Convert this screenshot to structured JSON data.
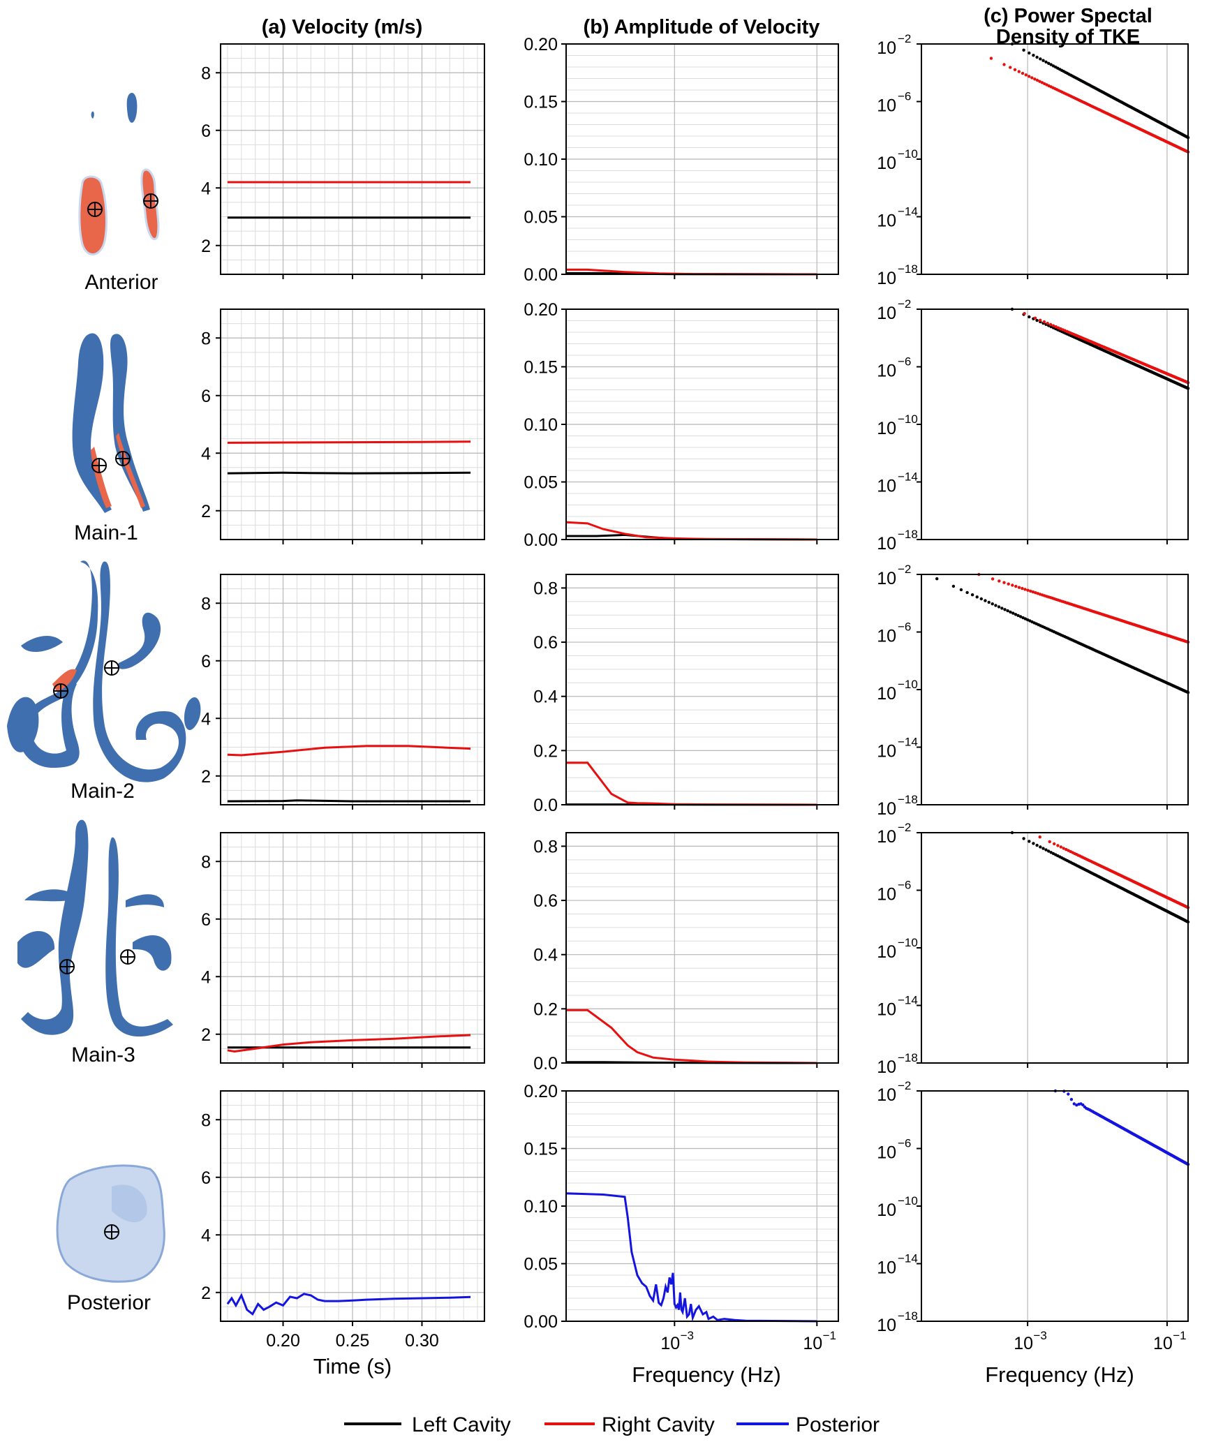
{
  "column_titles": {
    "a": "(a) Velocity (m/s)",
    "b": "(b) Amplitude of Velocity",
    "c_line1": "(c) Power Spectal",
    "c_line2": "Density of TKE"
  },
  "row_labels": [
    "Anterior",
    "Main-1",
    "Main-2",
    "Main-3",
    "Posterior"
  ],
  "axis_labels": {
    "time": "Time (s)",
    "frequency_b": "Frequency (Hz)",
    "frequency_c": "Frequency (Hz)"
  },
  "legend": [
    {
      "label": "Left Cavity",
      "color": "#000000"
    },
    {
      "label": "Right Cavity",
      "color": "#e8100f"
    },
    {
      "label": "Posterior",
      "color": "#1414e0"
    }
  ],
  "colors": {
    "left": "#000000",
    "right": "#e8100f",
    "posterior": "#1414e0",
    "geometry_blue": "#3f6fae",
    "geometry_red": "#e8664a",
    "geometry_light": "#c9d8ef"
  },
  "chart_data": [
    {
      "panel": "a",
      "type": "line",
      "title": "(a) Velocity (m/s)",
      "xlabel": "Time (s)",
      "ylabel": "",
      "xlim": [
        0.155,
        0.345
      ],
      "ylim": [
        1,
        9
      ],
      "yticks": [
        "2",
        "4",
        "6",
        "8"
      ],
      "xticks": [
        "0.20",
        "0.25",
        "0.30"
      ],
      "xtick_values": [
        0.2,
        0.25,
        0.3
      ],
      "grid": true,
      "rows": [
        {
          "row": "Anterior",
          "series": [
            {
              "name": "Left Cavity",
              "x": [
                0.16,
                0.2,
                0.25,
                0.3,
                0.335
              ],
              "y": [
                2.97,
                2.97,
                2.97,
                2.97,
                2.97
              ]
            },
            {
              "name": "Right Cavity",
              "x": [
                0.16,
                0.2,
                0.25,
                0.3,
                0.335
              ],
              "y": [
                4.2,
                4.2,
                4.2,
                4.2,
                4.2
              ]
            }
          ]
        },
        {
          "row": "Main-1",
          "series": [
            {
              "name": "Left Cavity",
              "x": [
                0.16,
                0.2,
                0.22,
                0.25,
                0.3,
                0.335
              ],
              "y": [
                3.3,
                3.32,
                3.31,
                3.3,
                3.31,
                3.32
              ]
            },
            {
              "name": "Right Cavity",
              "x": [
                0.16,
                0.2,
                0.25,
                0.3,
                0.335
              ],
              "y": [
                4.36,
                4.37,
                4.38,
                4.39,
                4.4
              ]
            }
          ]
        },
        {
          "row": "Main-2",
          "series": [
            {
              "name": "Left Cavity",
              "x": [
                0.16,
                0.2,
                0.21,
                0.25,
                0.3,
                0.335
              ],
              "y": [
                1.12,
                1.13,
                1.15,
                1.12,
                1.12,
                1.12
              ]
            },
            {
              "name": "Right Cavity",
              "x": [
                0.16,
                0.17,
                0.2,
                0.23,
                0.26,
                0.29,
                0.31,
                0.335
              ],
              "y": [
                2.74,
                2.72,
                2.84,
                2.98,
                3.04,
                3.04,
                3.0,
                2.95
              ]
            }
          ]
        },
        {
          "row": "Main-3",
          "series": [
            {
              "name": "Left Cavity",
              "x": [
                0.16,
                0.2,
                0.25,
                0.3,
                0.335
              ],
              "y": [
                1.54,
                1.54,
                1.54,
                1.54,
                1.54
              ]
            },
            {
              "name": "Right Cavity",
              "x": [
                0.16,
                0.165,
                0.18,
                0.2,
                0.22,
                0.25,
                0.28,
                0.31,
                0.335
              ],
              "y": [
                1.44,
                1.4,
                1.5,
                1.64,
                1.72,
                1.79,
                1.84,
                1.92,
                1.97
              ]
            }
          ]
        },
        {
          "row": "Posterior",
          "series": [
            {
              "name": "Posterior",
              "x": [
                0.16,
                0.163,
                0.166,
                0.17,
                0.174,
                0.178,
                0.182,
                0.186,
                0.19,
                0.195,
                0.2,
                0.205,
                0.21,
                0.215,
                0.22,
                0.225,
                0.23,
                0.24,
                0.25,
                0.26,
                0.28,
                0.3,
                0.32,
                0.335
              ],
              "y": [
                1.6,
                1.8,
                1.55,
                1.9,
                1.4,
                1.25,
                1.6,
                1.4,
                1.5,
                1.65,
                1.55,
                1.85,
                1.8,
                1.95,
                1.9,
                1.75,
                1.7,
                1.7,
                1.72,
                1.75,
                1.78,
                1.8,
                1.82,
                1.84
              ]
            }
          ]
        }
      ]
    },
    {
      "panel": "b",
      "type": "line",
      "title": "(b) Amplitude of Velocity",
      "xlabel": "Frequency (Hz)",
      "ylabel": "",
      "xscale": "log",
      "xlim": [
        3e-05,
        0.2
      ],
      "xticks": [
        "10",
        "10"
      ],
      "xtick_exponents": [
        "−3",
        "−1"
      ],
      "xtick_values": [
        0.001,
        0.1
      ],
      "grid": true,
      "rows": [
        {
          "row": "Anterior",
          "ylim": [
            0,
            0.2
          ],
          "yticks": [
            "0.00",
            "0.05",
            "0.10",
            "0.15",
            "0.20"
          ],
          "ytick_values": [
            0,
            0.05,
            0.1,
            0.15,
            0.2
          ],
          "series": [
            {
              "name": "Left Cavity",
              "x": [
                3e-05,
                0.0001,
                0.0003,
                0.001,
                0.1
              ],
              "y": [
                0.001,
                0.001,
                0.0005,
                0.0002,
                0
              ]
            },
            {
              "name": "Right Cavity",
              "x": [
                3e-05,
                6e-05,
                0.0002,
                0.0006,
                0.002,
                0.1
              ],
              "y": [
                0.004,
                0.004,
                0.002,
                0.0008,
                0.0002,
                0
              ]
            }
          ]
        },
        {
          "row": "Main-1",
          "ylim": [
            0,
            0.2
          ],
          "yticks": [
            "0.00",
            "0.05",
            "0.10",
            "0.15",
            "0.20"
          ],
          "ytick_values": [
            0,
            0.05,
            0.1,
            0.15,
            0.2
          ],
          "series": [
            {
              "name": "Left Cavity",
              "x": [
                3e-05,
                8e-05,
                0.0002,
                0.0005,
                0.001,
                0.1
              ],
              "y": [
                0.003,
                0.003,
                0.004,
                0.002,
                0.0005,
                0
              ]
            },
            {
              "name": "Right Cavity",
              "x": [
                3e-05,
                6e-05,
                0.0001,
                0.0002,
                0.0004,
                0.001,
                0.003,
                0.1
              ],
              "y": [
                0.015,
                0.014,
                0.009,
                0.005,
                0.002,
                0.001,
                0.0003,
                0
              ]
            }
          ]
        },
        {
          "row": "Main-2",
          "ylim": [
            0,
            0.85
          ],
          "yticks": [
            "0.0",
            "0.2",
            "0.4",
            "0.6",
            "0.8"
          ],
          "ytick_values": [
            0,
            0.2,
            0.4,
            0.6,
            0.8
          ],
          "series": [
            {
              "name": "Left Cavity",
              "x": [
                3e-05,
                0.0001,
                0.001,
                0.1
              ],
              "y": [
                0.001,
                0.001,
                0.0005,
                0
              ]
            },
            {
              "name": "Right Cavity",
              "x": [
                3e-05,
                6e-05,
                0.00013,
                0.00022,
                0.0003,
                0.0005,
                0.001,
                0.003,
                0.1
              ],
              "y": [
                0.155,
                0.155,
                0.04,
                0.008,
                0.006,
                0.005,
                0.002,
                0.001,
                0
              ]
            }
          ]
        },
        {
          "row": "Main-3",
          "ylim": [
            0,
            0.85
          ],
          "yticks": [
            "0.0",
            "0.2",
            "0.4",
            "0.6",
            "0.8"
          ],
          "ytick_values": [
            0,
            0.2,
            0.4,
            0.6,
            0.8
          ],
          "series": [
            {
              "name": "Left Cavity",
              "x": [
                3e-05,
                0.0001,
                0.001,
                0.1
              ],
              "y": [
                0.003,
                0.003,
                0.001,
                0
              ]
            },
            {
              "name": "Right Cavity",
              "x": [
                3e-05,
                6e-05,
                0.00013,
                0.00022,
                0.0003,
                0.0005,
                0.001,
                0.0015,
                0.003,
                0.01,
                0.1
              ],
              "y": [
                0.195,
                0.195,
                0.13,
                0.065,
                0.04,
                0.02,
                0.012,
                0.01,
                0.005,
                0.002,
                0
              ]
            }
          ]
        },
        {
          "row": "Posterior",
          "ylim": [
            0,
            0.2
          ],
          "yticks": [
            "0.00",
            "0.05",
            "0.10",
            "0.15",
            "0.20"
          ],
          "ytick_values": [
            0,
            0.05,
            0.1,
            0.15,
            0.2
          ],
          "series": [
            {
              "name": "Posterior",
              "x": [
                3e-05,
                0.0001,
                0.0002,
                0.00022,
                0.00025,
                0.0003,
                0.00035,
                0.0004,
                0.00045,
                0.0005,
                0.00055,
                0.0006,
                0.00065,
                0.0007,
                0.00075,
                0.0008,
                0.00085,
                0.0009,
                0.00095,
                0.001,
                0.00105,
                0.0011,
                0.00115,
                0.0012,
                0.00125,
                0.0013,
                0.0014,
                0.0015,
                0.0016,
                0.0017,
                0.0018,
                0.002,
                0.0022,
                0.0025,
                0.0028,
                0.003,
                0.0035,
                0.004,
                0.005,
                0.007,
                0.01,
                0.1
              ],
              "y": [
                0.111,
                0.11,
                0.108,
                0.09,
                0.06,
                0.04,
                0.033,
                0.03,
                0.022,
                0.018,
                0.032,
                0.016,
                0.014,
                0.02,
                0.03,
                0.025,
                0.038,
                0.032,
                0.042,
                0.015,
                0.012,
                0.014,
                0.01,
                0.025,
                0.01,
                0.008,
                0.02,
                0.004,
                0.006,
                0.015,
                0.003,
                0.01,
                0.013,
                0.006,
                0.008,
                0.002,
                0.004,
                0.001,
                0.002,
                0.001,
                0.0005,
                0
              ]
            }
          ]
        }
      ]
    },
    {
      "panel": "c",
      "type": "scatter",
      "title": "(c) Power Spectal Density of TKE",
      "xlabel": "Frequency (Hz)",
      "ylabel": "",
      "xscale": "log",
      "yscale": "log",
      "xlim": [
        3e-05,
        0.2
      ],
      "ylim_exponent": [
        -18,
        -2
      ],
      "xticks": [
        "10",
        "10"
      ],
      "xtick_exponents": [
        "−3",
        "−1"
      ],
      "xtick_values": [
        0.001,
        0.1
      ],
      "yticks": [
        "10",
        "10",
        "10",
        "10",
        "10"
      ],
      "ytick_exponents": [
        "−2",
        "−6",
        "−10",
        "−14",
        "−18"
      ],
      "ytick_values": [
        -2,
        -6,
        -10,
        -14,
        -18
      ],
      "grid": true,
      "rows": [
        {
          "row": "Anterior",
          "series": [
            {
              "name": "Left Cavity",
              "x": [
                0.0006,
                0.2
              ],
              "log10_y": [
                -2,
                -8.5
              ],
              "x_start": 0.0006
            },
            {
              "name": "Right Cavity",
              "x": [
                0.0003,
                0.2
              ],
              "log10_y": [
                -3,
                -9.5
              ],
              "x_start": 0.0003
            }
          ]
        },
        {
          "row": "Main-1",
          "series": [
            {
              "name": "Left Cavity",
              "x": [
                0.0006,
                0.2
              ],
              "log10_y": [
                -2,
                -7.5
              ]
            },
            {
              "name": "Right Cavity",
              "x": [
                0.0009,
                0.2
              ],
              "log10_y": [
                -2.3,
                -7.1
              ]
            }
          ]
        },
        {
          "row": "Main-2",
          "series": [
            {
              "name": "Left Cavity",
              "x": [
                5e-05,
                0.2
              ],
              "log10_y": [
                -2.3,
                -10.2
              ]
            },
            {
              "name": "Right Cavity",
              "x": [
                0.0002,
                0.2
              ],
              "log10_y": [
                -2,
                -6.7
              ]
            }
          ]
        },
        {
          "row": "Main-3",
          "series": [
            {
              "name": "Left Cavity",
              "x": [
                0.0006,
                0.2
              ],
              "log10_y": [
                -2,
                -8.2
              ]
            },
            {
              "name": "Right Cavity",
              "x": [
                0.0015,
                0.2
              ],
              "log10_y": [
                -2.3,
                -7.2
              ]
            }
          ]
        },
        {
          "row": "Posterior",
          "series": [
            {
              "name": "Posterior",
              "x": [
                0.0025,
                0.2
              ],
              "log10_y": [
                -2,
                -7.1
              ]
            }
          ]
        }
      ]
    }
  ]
}
